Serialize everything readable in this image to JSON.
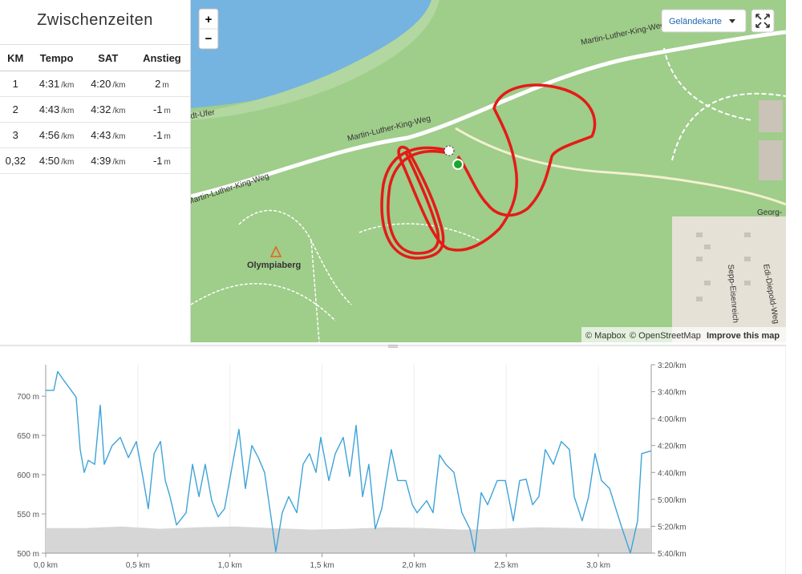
{
  "splits": {
    "title": "Zwischenzeiten",
    "columns": [
      "KM",
      "Tempo",
      "SAT",
      "Anstieg"
    ],
    "rows": [
      [
        [
          "1"
        ],
        [
          "4:31",
          "/km"
        ],
        [
          "4:20",
          "/km"
        ],
        [
          "2",
          "m"
        ]
      ],
      [
        [
          "2"
        ],
        [
          "4:43",
          "/km"
        ],
        [
          "4:32",
          "/km"
        ],
        [
          "-1",
          "m"
        ]
      ],
      [
        [
          "3"
        ],
        [
          "4:56",
          "/km"
        ],
        [
          "4:43",
          "/km"
        ],
        [
          "-1",
          "m"
        ]
      ],
      [
        [
          "0,32"
        ],
        [
          "4:50",
          "/km"
        ],
        [
          "4:39",
          "/km"
        ],
        [
          "-1",
          "m"
        ]
      ]
    ]
  },
  "map": {
    "zoom_in": "+",
    "zoom_out": "−",
    "layer": "Geländekarte",
    "labels": [
      "Martin-Luther-King-Weg",
      "Martin-Luther-King-Weg",
      "Martin-Luther-King-Weg",
      "dt-Ufer",
      "Olympiaberg",
      "Georg-",
      "Sepp-Eisenreich",
      "Edi-Diepold-Weg"
    ],
    "attribution": [
      "© Mapbox",
      "© OpenStreetMap",
      "Improve this map"
    ]
  },
  "chart_data": {
    "type": "line",
    "xlim": [
      0,
      3.287
    ],
    "xticks": [
      {
        "value": 0,
        "label": "0,0 km"
      },
      {
        "value": 0.5,
        "label": "0,5 km"
      },
      {
        "value": 1,
        "label": "1,0 km"
      },
      {
        "value": 1.5,
        "label": "1,5 km"
      },
      {
        "value": 2,
        "label": "2,0 km"
      },
      {
        "value": 2.5,
        "label": "2,5 km"
      },
      {
        "value": 3,
        "label": "3,0 km"
      }
    ],
    "ylim": [
      500,
      740
    ],
    "yticks": [
      {
        "value": 500,
        "label": "500 m"
      },
      {
        "value": 550,
        "label": "550 m"
      },
      {
        "value": 600,
        "label": "600 m"
      },
      {
        "value": 650,
        "label": "650 m"
      },
      {
        "value": 700,
        "label": "700 m"
      }
    ],
    "y2lim": [
      340,
      200
    ],
    "y2ticks": [
      {
        "value": 200,
        "label": "3:20/km"
      },
      {
        "value": 220,
        "label": "3:40/km"
      },
      {
        "value": 240,
        "label": "4:00/km"
      },
      {
        "value": 260,
        "label": "4:20/km"
      },
      {
        "value": 280,
        "label": "4:40/km"
      },
      {
        "value": 300,
        "label": "5:00/km"
      },
      {
        "value": 320,
        "label": "5:20/km"
      },
      {
        "value": 340,
        "label": "5:40/km"
      }
    ],
    "grid": true,
    "series": [
      {
        "type": "area",
        "color": "#d6d6d6",
        "x": [
          0,
          0.205,
          0.411,
          0.616,
          0.822,
          1.027,
          1.233,
          1.438,
          1.644,
          1.849,
          2.055,
          2.26,
          2.466,
          2.671,
          2.877,
          3.082,
          3.287
        ],
        "values": [
          532,
          532,
          534,
          531,
          533,
          534,
          532,
          530,
          531,
          533,
          532,
          530,
          531,
          533,
          532,
          531,
          532
        ]
      },
      {
        "type": "line",
        "axis": "y2",
        "color": "#3ea3d8",
        "x": [
          0,
          0.044,
          0.065,
          0.1,
          0.165,
          0.187,
          0.209,
          0.231,
          0.266,
          0.296,
          0.318,
          0.361,
          0.405,
          0.449,
          0.492,
          0.527,
          0.557,
          0.588,
          0.623,
          0.649,
          0.675,
          0.71,
          0.762,
          0.797,
          0.832,
          0.866,
          0.901,
          0.936,
          0.971,
          1.014,
          1.049,
          1.084,
          1.119,
          1.154,
          1.188,
          1.223,
          1.249,
          1.284,
          1.319,
          1.363,
          1.397,
          1.432,
          1.467,
          1.493,
          1.537,
          1.572,
          1.615,
          1.65,
          1.685,
          1.72,
          1.754,
          1.789,
          1.824,
          1.876,
          1.911,
          1.955,
          1.99,
          2.016,
          2.068,
          2.103,
          2.138,
          2.172,
          2.216,
          2.259,
          2.303,
          2.329,
          2.364,
          2.399,
          2.451,
          2.495,
          2.538,
          2.573,
          2.608,
          2.643,
          2.677,
          2.712,
          2.756,
          2.799,
          2.843,
          2.869,
          2.912,
          2.947,
          2.982,
          3.017,
          3.061,
          3.095,
          3.13,
          3.174,
          3.213,
          3.235,
          3.287
        ],
        "values": [
          219,
          219,
          205,
          212,
          224,
          263,
          280,
          271,
          274,
          230,
          274,
          260,
          254,
          269,
          257,
          283,
          307,
          266,
          257,
          286,
          298,
          319,
          310,
          274,
          298,
          274,
          301,
          313,
          307,
          274,
          248,
          292,
          260,
          269,
          280,
          313,
          339,
          310,
          298,
          310,
          274,
          266,
          280,
          254,
          286,
          266,
          254,
          283,
          245,
          298,
          274,
          322,
          307,
          263,
          286,
          286,
          304,
          310,
          301,
          310,
          267,
          274,
          280,
          310,
          322,
          339,
          295,
          304,
          286,
          286,
          316,
          286,
          285,
          304,
          298,
          263,
          274,
          257,
          263,
          298,
          316,
          298,
          266,
          286,
          292,
          307,
          322,
          340,
          316,
          266,
          264
        ]
      }
    ]
  }
}
